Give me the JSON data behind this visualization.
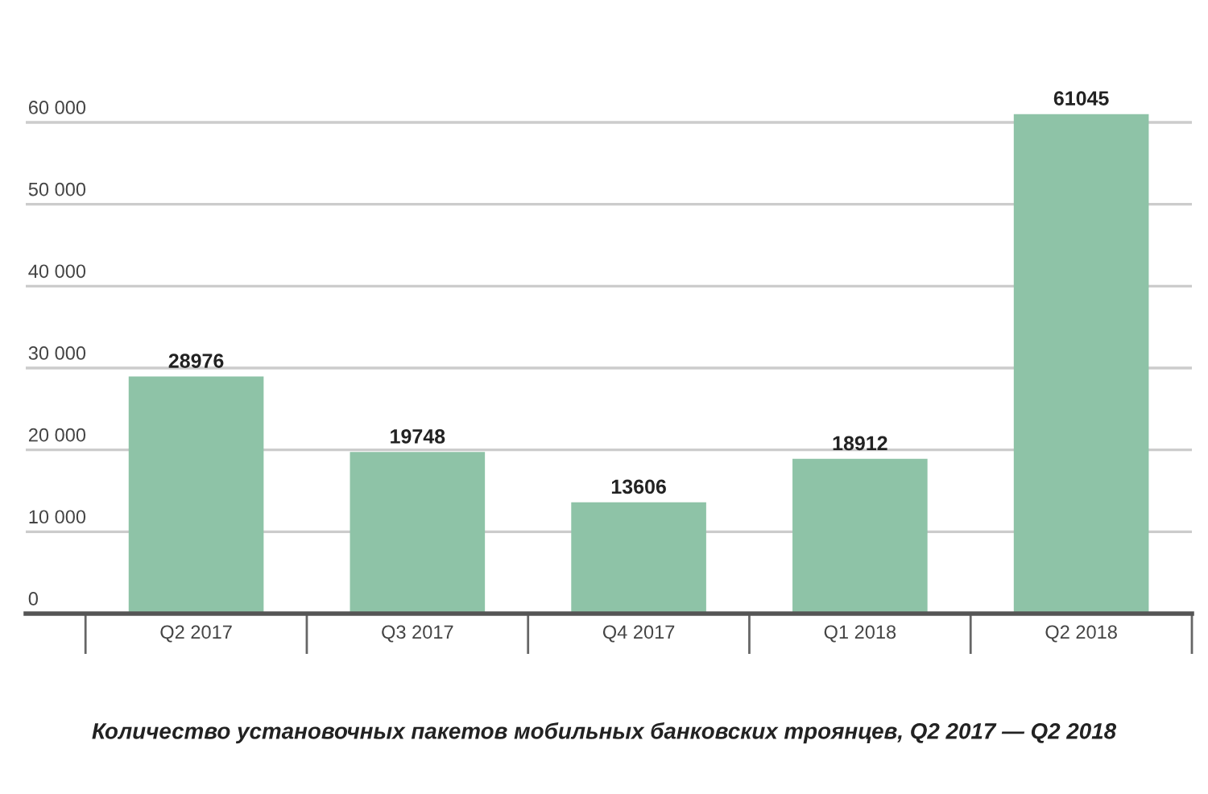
{
  "chart_data": {
    "type": "bar",
    "categories": [
      "Q2 2017",
      "Q3 2017",
      "Q4 2017",
      "Q1 2018",
      "Q2 2018"
    ],
    "values": [
      28976,
      19748,
      13606,
      18912,
      61045
    ],
    "color": "#8ec3a7",
    "ylim": [
      0,
      61045
    ],
    "yticks": [
      0,
      {
        "value": 10000,
        "label": "10 000"
      },
      {
        "value": 20000,
        "label": "20 000"
      },
      {
        "value": 30000,
        "label": "30 000"
      },
      {
        "value": 40000,
        "label": "40 000"
      },
      {
        "value": 50000,
        "label": "50 000"
      },
      {
        "value": 60000,
        "label": "60 000"
      }
    ],
    "grid": "y",
    "data_labels": true,
    "annotations": [
      "Количество установочных пакетов мобильных банковских троянцев, Q2 2017 — Q2 2018"
    ]
  }
}
